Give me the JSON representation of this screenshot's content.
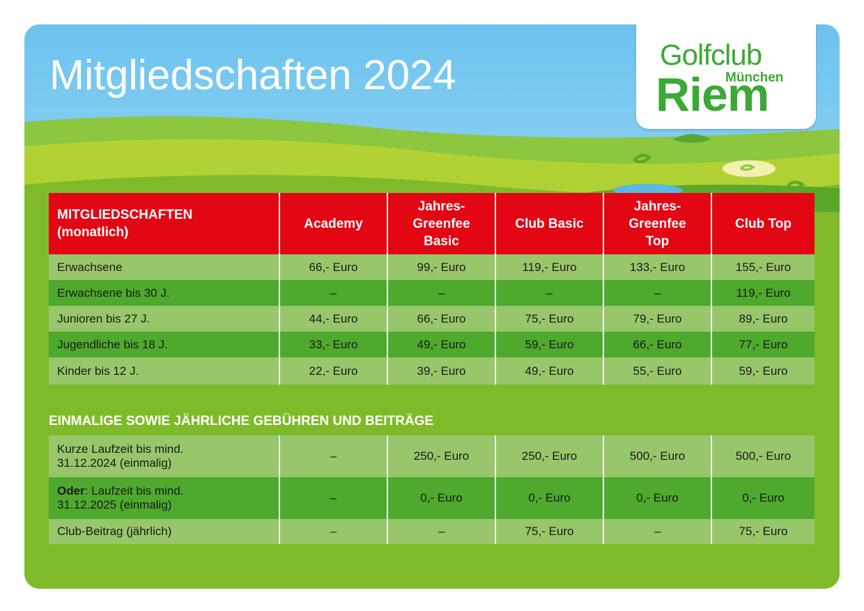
{
  "title": "Mitgliedschaften 2024",
  "logo": {
    "line1": "Golfclub",
    "line2": "München",
    "line3": "Riem"
  },
  "colors": {
    "header_red": "#e30613",
    "row_light": "#97c76a",
    "row_dark": "#4ea92d",
    "logo_green": "#3aa935"
  },
  "table1": {
    "header": {
      "line1": "MITGLIEDSCHAFTEN",
      "line2": "(monatlich)"
    },
    "columns": [
      {
        "l1": "Academy",
        "l2": "",
        "l3": ""
      },
      {
        "l1": "Jahres-",
        "l2": "Greenfee",
        "l3": "Basic"
      },
      {
        "l1": "Club Basic",
        "l2": "",
        "l3": ""
      },
      {
        "l1": "Jahres-",
        "l2": "Greenfee",
        "l3": "Top"
      },
      {
        "l1": "Club Top",
        "l2": "",
        "l3": ""
      }
    ],
    "rows": [
      {
        "label": "Erwachsene",
        "values": [
          "66,- Euro",
          "99,- Euro",
          "119,- Euro",
          "133,- Euro",
          "155,- Euro"
        ]
      },
      {
        "label": "Erwachsene bis 30 J.",
        "values": [
          "–",
          "–",
          "–",
          "–",
          "119,- Euro"
        ]
      },
      {
        "label": "Junioren bis 27 J.",
        "values": [
          "44,- Euro",
          "66,- Euro",
          "75,- Euro",
          "79,- Euro",
          "89,- Euro"
        ]
      },
      {
        "label": "Jugendliche bis 18 J.",
        "values": [
          "33,- Euro",
          "49,- Euro",
          "59,- Euro",
          "66,- Euro",
          "77,- Euro"
        ]
      },
      {
        "label": "Kinder bis 12 J.",
        "values": [
          "22,- Euro",
          "39,- Euro",
          "49,- Euro",
          "55,- Euro",
          "59,- Euro"
        ]
      }
    ]
  },
  "section_title": "EINMALIGE SOWIE JÄHRLICHE GEBÜHREN UND BEITRÄGE",
  "table2": {
    "rows": [
      {
        "label_bold": "",
        "label_l1": "Kurze Laufzeit bis mind.",
        "label_l2": "31.12.2024 (einmalig)",
        "values": [
          "–",
          "250,- Euro",
          "250,- Euro",
          "500,- Euro",
          "500,- Euro"
        ]
      },
      {
        "label_bold": "Oder",
        "label_l1": ": Laufzeit bis mind.",
        "label_l2": "31.12.2025 (einmalig)",
        "values": [
          "–",
          "0,- Euro",
          "0,- Euro",
          "0,- Euro",
          "0,- Euro"
        ]
      },
      {
        "label_bold": "",
        "label_l1": "Club-Beitrag (jährlich)",
        "label_l2": "",
        "values": [
          "–",
          "–",
          "75,- Euro",
          "–",
          "75,- Euro"
        ]
      }
    ]
  }
}
